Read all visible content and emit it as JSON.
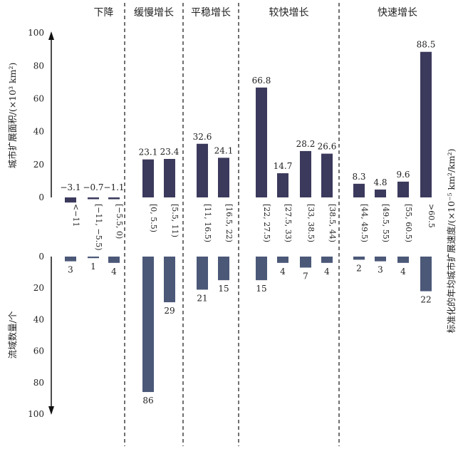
{
  "chart_data": {
    "type": "bar",
    "groups": [
      "下降",
      "缓慢增长",
      "平稳增长",
      "较快增长",
      "快速增长"
    ],
    "group_members": [
      [
        0,
        1,
        2
      ],
      [
        3,
        4
      ],
      [
        5,
        6
      ],
      [
        7,
        8,
        9,
        10
      ],
      [
        11,
        12,
        13,
        14
      ]
    ],
    "categories": [
      "<−11",
      "[−11, −5.5)",
      "[−5.5, 0)",
      "[0, 5.5)",
      "[5.5, 11)",
      "[11, 16.5)",
      "[16.5, 22)",
      "[22, 27.5)",
      "[27.5, 33)",
      "[33, 38.5)",
      "[38.5, 44)",
      "[44, 49.5)",
      "[49.5, 55)",
      "[55, 60.5)",
      ">60.5"
    ],
    "area_label": "城市扩展面积/(×10³ km²)",
    "area_values": [
      -3.1,
      -0.7,
      -1.1,
      23.1,
      23.4,
      32.6,
      24.1,
      66.8,
      14.7,
      28.2,
      26.6,
      8.3,
      4.8,
      9.6,
      88.5
    ],
    "area_value_labels": [
      "−3.1",
      "−0.7",
      "−1.1",
      "23.1",
      "23.4",
      "32.6",
      "24.1",
      "66.8",
      "14.7",
      "28.2",
      "26.6",
      "8.3",
      "4.8",
      "9.6",
      "88.5"
    ],
    "area_ylim": [
      0,
      100
    ],
    "area_ticks": [
      "0",
      "20",
      "40",
      "60",
      "80",
      "100"
    ],
    "area_color": "#3b3a5c",
    "count_label": "流域数量/个",
    "count_values": [
      3,
      1,
      4,
      86,
      29,
      21,
      15,
      15,
      4,
      7,
      4,
      2,
      3,
      4,
      22
    ],
    "count_ylim": [
      0,
      100
    ],
    "count_ticks": [
      "0",
      "20",
      "40",
      "60",
      "80",
      "100"
    ],
    "count_color": "#4b5878",
    "right_axis_label": "标准化的年均城市扩展速度/(×10⁻⁵ km²/km²)",
    "group_separator": "dashed"
  }
}
